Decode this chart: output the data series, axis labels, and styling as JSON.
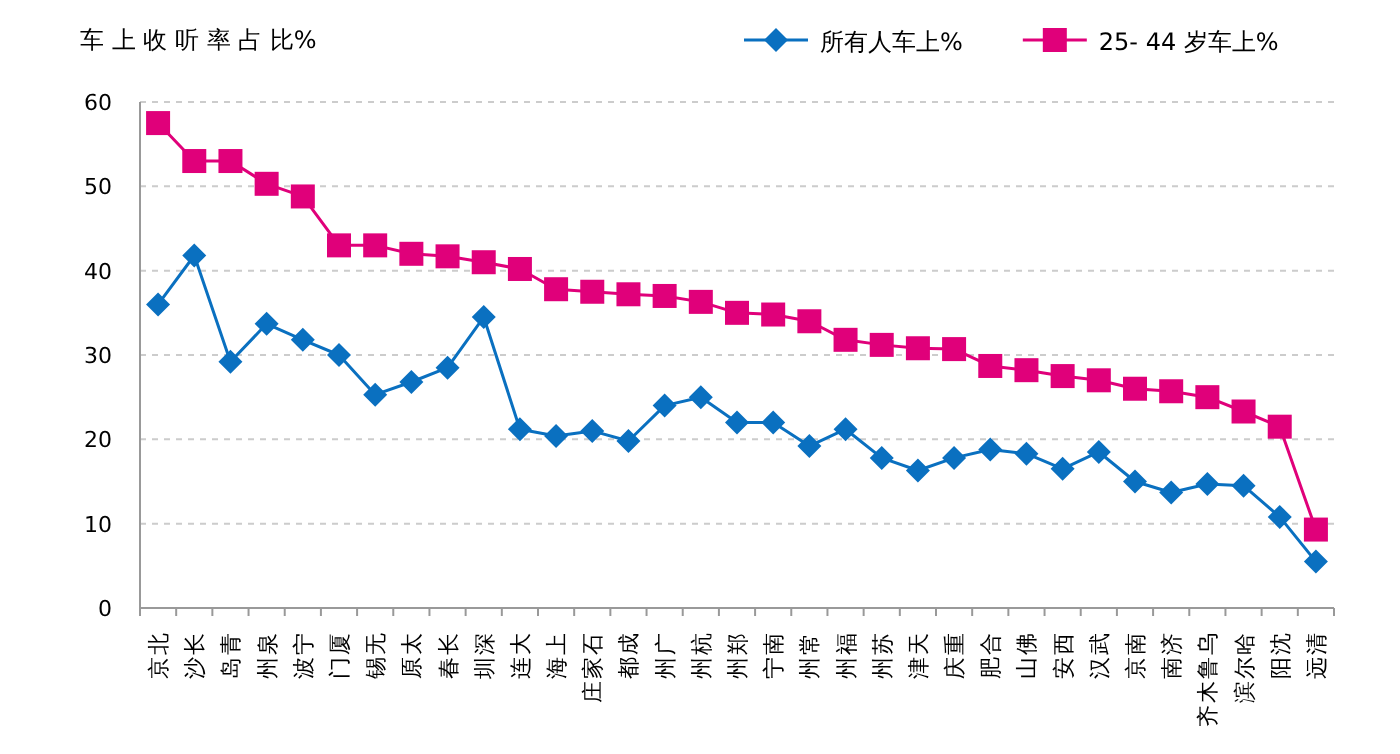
{
  "chart_data": {
    "type": "line",
    "title": "车 上 收 听 率 占 比%",
    "categories": [
      "北京",
      "长沙",
      "青岛",
      "泉州",
      "宁波",
      "厦门",
      "无锡",
      "太原",
      "长春",
      "深圳",
      "大连",
      "上海",
      "石家庄",
      "成都",
      "广州",
      "杭州",
      "郑州",
      "南宁",
      "常州",
      "福州",
      "苏州",
      "天津",
      "重庆",
      "合肥",
      "佛山",
      "西安",
      "武汉",
      "南京",
      "济南",
      "乌鲁木齐",
      "哈尔滨",
      "沈阳",
      "清远"
    ],
    "series": [
      {
        "name": "所有人车上%",
        "color": "#0a70c0",
        "marker": "diamond",
        "values": [
          36,
          41.8,
          29.2,
          33.7,
          31.8,
          30,
          25.3,
          26.8,
          28.5,
          34.5,
          21.2,
          20.4,
          21,
          19.8,
          24,
          25,
          22,
          22,
          19.2,
          21.2,
          17.8,
          16.3,
          17.8,
          18.8,
          18.3,
          16.5,
          18.5,
          15,
          13.7,
          14.7,
          14.5,
          10.8,
          5.5
        ]
      },
      {
        "name": "25- 44 岁车上%",
        "color": "#e0007a",
        "marker": "square",
        "values": [
          57.5,
          53,
          53,
          50.3,
          48.8,
          43,
          43,
          42,
          41.7,
          41,
          40.2,
          37.8,
          37.5,
          37.2,
          37,
          36.3,
          35,
          34.8,
          34,
          31.8,
          31.2,
          30.8,
          30.7,
          28.7,
          28.2,
          27.5,
          27,
          26,
          25.7,
          25,
          23.3,
          21.5,
          9.3
        ]
      }
    ],
    "ylim": [
      0,
      60
    ],
    "yticks": [
      0,
      10,
      20,
      30,
      40,
      50,
      60
    ],
    "grid": "y",
    "legend": "top right",
    "line_style": "solid"
  }
}
